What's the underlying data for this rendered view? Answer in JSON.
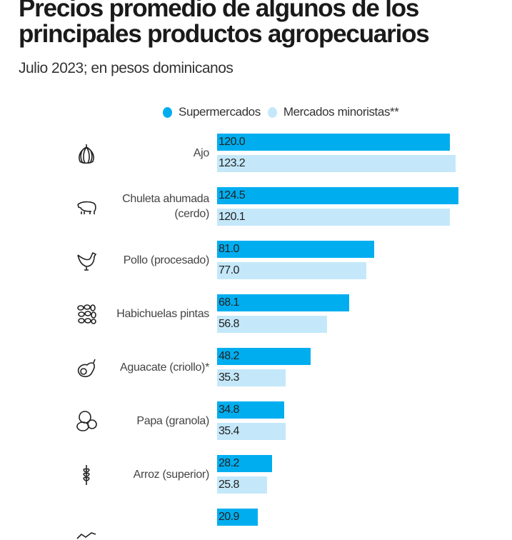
{
  "chart_data": {
    "type": "bar",
    "orientation": "horizontal",
    "title": "Precios promedio de algunos de los principales productos agropecuarios",
    "subtitle": "Julio 2023; en pesos dominicanos",
    "legend_position": "top",
    "grid": false,
    "xlim": [
      0,
      130
    ],
    "categories": [
      {
        "label": "Ajo",
        "icon": "garlic-icon"
      },
      {
        "label": "Chuleta ahumada\n(cerdo)",
        "icon": "pig-icon"
      },
      {
        "label": "Pollo (procesado)",
        "icon": "chicken-icon"
      },
      {
        "label": "Habichuelas pintas",
        "icon": "beans-icon"
      },
      {
        "label": "Aguacate (criollo)*",
        "icon": "avocado-icon"
      },
      {
        "label": "Papa (granola)",
        "icon": "potato-icon"
      },
      {
        "label": "Arroz (superior)",
        "icon": "rice-icon"
      },
      {
        "label": "",
        "icon": "partial-icon"
      }
    ],
    "series": [
      {
        "name": "Supermercados",
        "color": "#00aeef",
        "values": [
          120.0,
          124.5,
          81.0,
          68.1,
          48.2,
          34.8,
          28.2,
          20.9
        ],
        "labels": [
          "120.0",
          "124.5",
          "81.0",
          "68.1",
          "48.2",
          "34.8",
          "28.2",
          "20.9"
        ]
      },
      {
        "name": "Mercados minoristas**",
        "color": "#c4e8fa",
        "values": [
          123.2,
          120.1,
          77.0,
          56.8,
          35.3,
          35.4,
          25.8,
          null
        ],
        "labels": [
          "123.2",
          "120.1",
          "77.0",
          "56.8",
          "35.3",
          "35.4",
          "25.8",
          null
        ]
      }
    ]
  }
}
